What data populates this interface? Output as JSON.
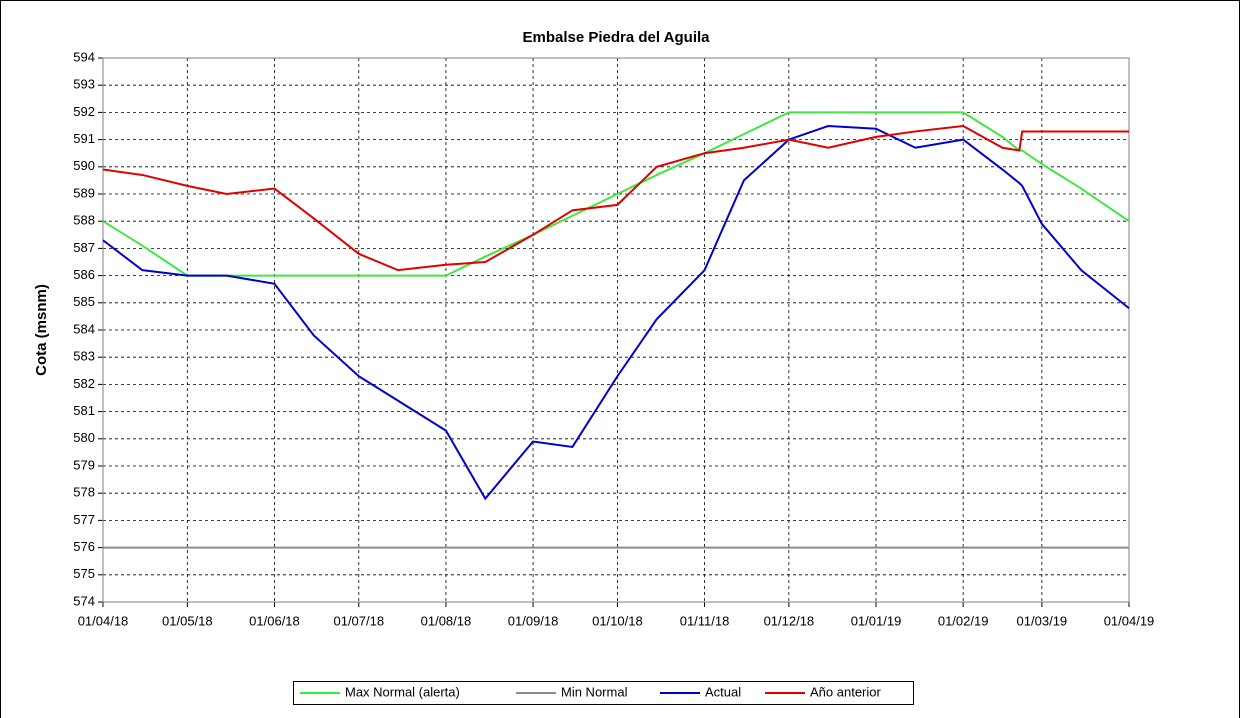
{
  "chart_data": {
    "type": "line",
    "title": "Embalse Piedra del Aguila",
    "y_label": "Cota (msnm)",
    "x": [
      "01/04/18",
      "15/04/18",
      "01/05/18",
      "15/05/18",
      "01/06/18",
      "15/06/18",
      "01/07/18",
      "15/07/18",
      "01/08/18",
      "15/08/18",
      "01/09/18",
      "15/09/18",
      "01/10/18",
      "15/10/18",
      "01/11/18",
      "15/11/18",
      "01/12/18",
      "15/12/18",
      "01/01/19",
      "15/01/19",
      "01/02/19",
      "15/02/19",
      "21/02/19",
      "22/02/19",
      "01/03/19",
      "15/03/19",
      "01/04/19"
    ],
    "series": [
      {
        "name": "Max Normal (alerta)",
        "color": "#3ee83e",
        "values": [
          588,
          587.1,
          586,
          586,
          586,
          586,
          586,
          586,
          586,
          586.7,
          587.5,
          588.2,
          589,
          589.7,
          590.5,
          591.2,
          592,
          592,
          592,
          592,
          592,
          591.1,
          590.6,
          590.6,
          590.1,
          589.2,
          588
        ]
      },
      {
        "name": "Min Normal",
        "color": "#8c8c8c",
        "values": [
          576,
          576,
          576,
          576,
          576,
          576,
          576,
          576,
          576,
          576,
          576,
          576,
          576,
          576,
          576,
          576,
          576,
          576,
          576,
          576,
          576,
          576,
          576,
          576,
          576,
          576,
          576
        ]
      },
      {
        "name": "Actual",
        "color": "#0000cc",
        "values": [
          587.3,
          586.2,
          586,
          586,
          585.7,
          583.8,
          582.3,
          581.4,
          580.3,
          577.8,
          579.9,
          579.7,
          582.3,
          584.4,
          586.2,
          589.5,
          591,
          591.5,
          591.4,
          590.7,
          591,
          589.9,
          589.4,
          589.3,
          587.9,
          586.2,
          584.8
        ]
      },
      {
        "name": "Año anterior",
        "color": "#e00000",
        "values": [
          589.9,
          589.7,
          589.3,
          589,
          589.2,
          588.1,
          586.8,
          586.2,
          586.4,
          586.5,
          587.5,
          588.4,
          588.6,
          590,
          590.5,
          590.7,
          591,
          590.7,
          591.1,
          591.3,
          591.5,
          590.7,
          590.6,
          591.3,
          591.3,
          591.3,
          591.3
        ]
      }
    ],
    "xlim": [
      "01/04/18",
      "01/04/19"
    ],
    "xticks": [
      "01/04/18",
      "01/05/18",
      "01/06/18",
      "01/07/18",
      "01/08/18",
      "01/09/18",
      "01/10/18",
      "01/11/18",
      "01/12/18",
      "01/01/19",
      "01/02/19",
      "01/03/19",
      "01/04/19"
    ],
    "ylim": [
      574,
      594
    ],
    "yticks": [
      574,
      575,
      576,
      577,
      578,
      579,
      580,
      581,
      582,
      583,
      584,
      585,
      586,
      587,
      588,
      589,
      590,
      591,
      592,
      593,
      594
    ],
    "grid": true,
    "legend": "bottom"
  }
}
